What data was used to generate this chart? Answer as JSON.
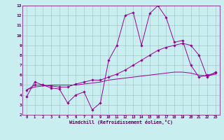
{
  "xlabel": "Windchill (Refroidissement éolien,°C)",
  "xlim": [
    -0.5,
    23.5
  ],
  "ylim": [
    2,
    13
  ],
  "xticks": [
    0,
    1,
    2,
    3,
    4,
    5,
    6,
    7,
    8,
    9,
    10,
    11,
    12,
    13,
    14,
    15,
    16,
    17,
    18,
    19,
    20,
    21,
    22,
    23
  ],
  "yticks": [
    2,
    3,
    4,
    5,
    6,
    7,
    8,
    9,
    10,
    11,
    12,
    13
  ],
  "bg_color": "#c8eef0",
  "grid_color": "#9dbfc0",
  "line_color": "#990099",
  "line1_x": [
    0,
    1,
    2,
    3,
    4,
    5,
    6,
    7,
    8,
    9,
    10,
    11,
    12,
    13,
    14,
    15,
    16,
    17,
    18,
    19,
    20,
    21,
    22,
    23
  ],
  "line1_y": [
    3.8,
    5.3,
    5.0,
    4.7,
    4.6,
    3.2,
    4.0,
    4.3,
    2.5,
    3.2,
    7.5,
    9.0,
    12.0,
    12.3,
    9.0,
    12.2,
    13.0,
    11.8,
    9.3,
    9.5,
    7.0,
    5.8,
    6.0,
    6.2
  ],
  "line2_x": [
    0,
    1,
    2,
    3,
    4,
    5,
    6,
    7,
    8,
    9,
    10,
    11,
    12,
    13,
    14,
    15,
    16,
    17,
    18,
    19,
    20,
    21,
    22,
    23
  ],
  "line2_y": [
    4.5,
    5.0,
    5.0,
    4.9,
    4.8,
    4.8,
    5.1,
    5.3,
    5.5,
    5.5,
    5.8,
    6.1,
    6.5,
    7.0,
    7.5,
    8.0,
    8.5,
    8.8,
    9.0,
    9.2,
    9.0,
    8.0,
    5.8,
    6.3
  ],
  "line3_x": [
    0,
    1,
    2,
    3,
    4,
    5,
    6,
    7,
    8,
    9,
    10,
    11,
    12,
    13,
    14,
    15,
    16,
    17,
    18,
    19,
    20,
    21,
    22,
    23
  ],
  "line3_y": [
    4.5,
    4.8,
    4.9,
    5.0,
    5.0,
    5.0,
    5.0,
    5.1,
    5.2,
    5.3,
    5.5,
    5.6,
    5.7,
    5.8,
    5.9,
    6.0,
    6.1,
    6.2,
    6.3,
    6.3,
    6.2,
    6.0,
    5.9,
    6.1
  ]
}
